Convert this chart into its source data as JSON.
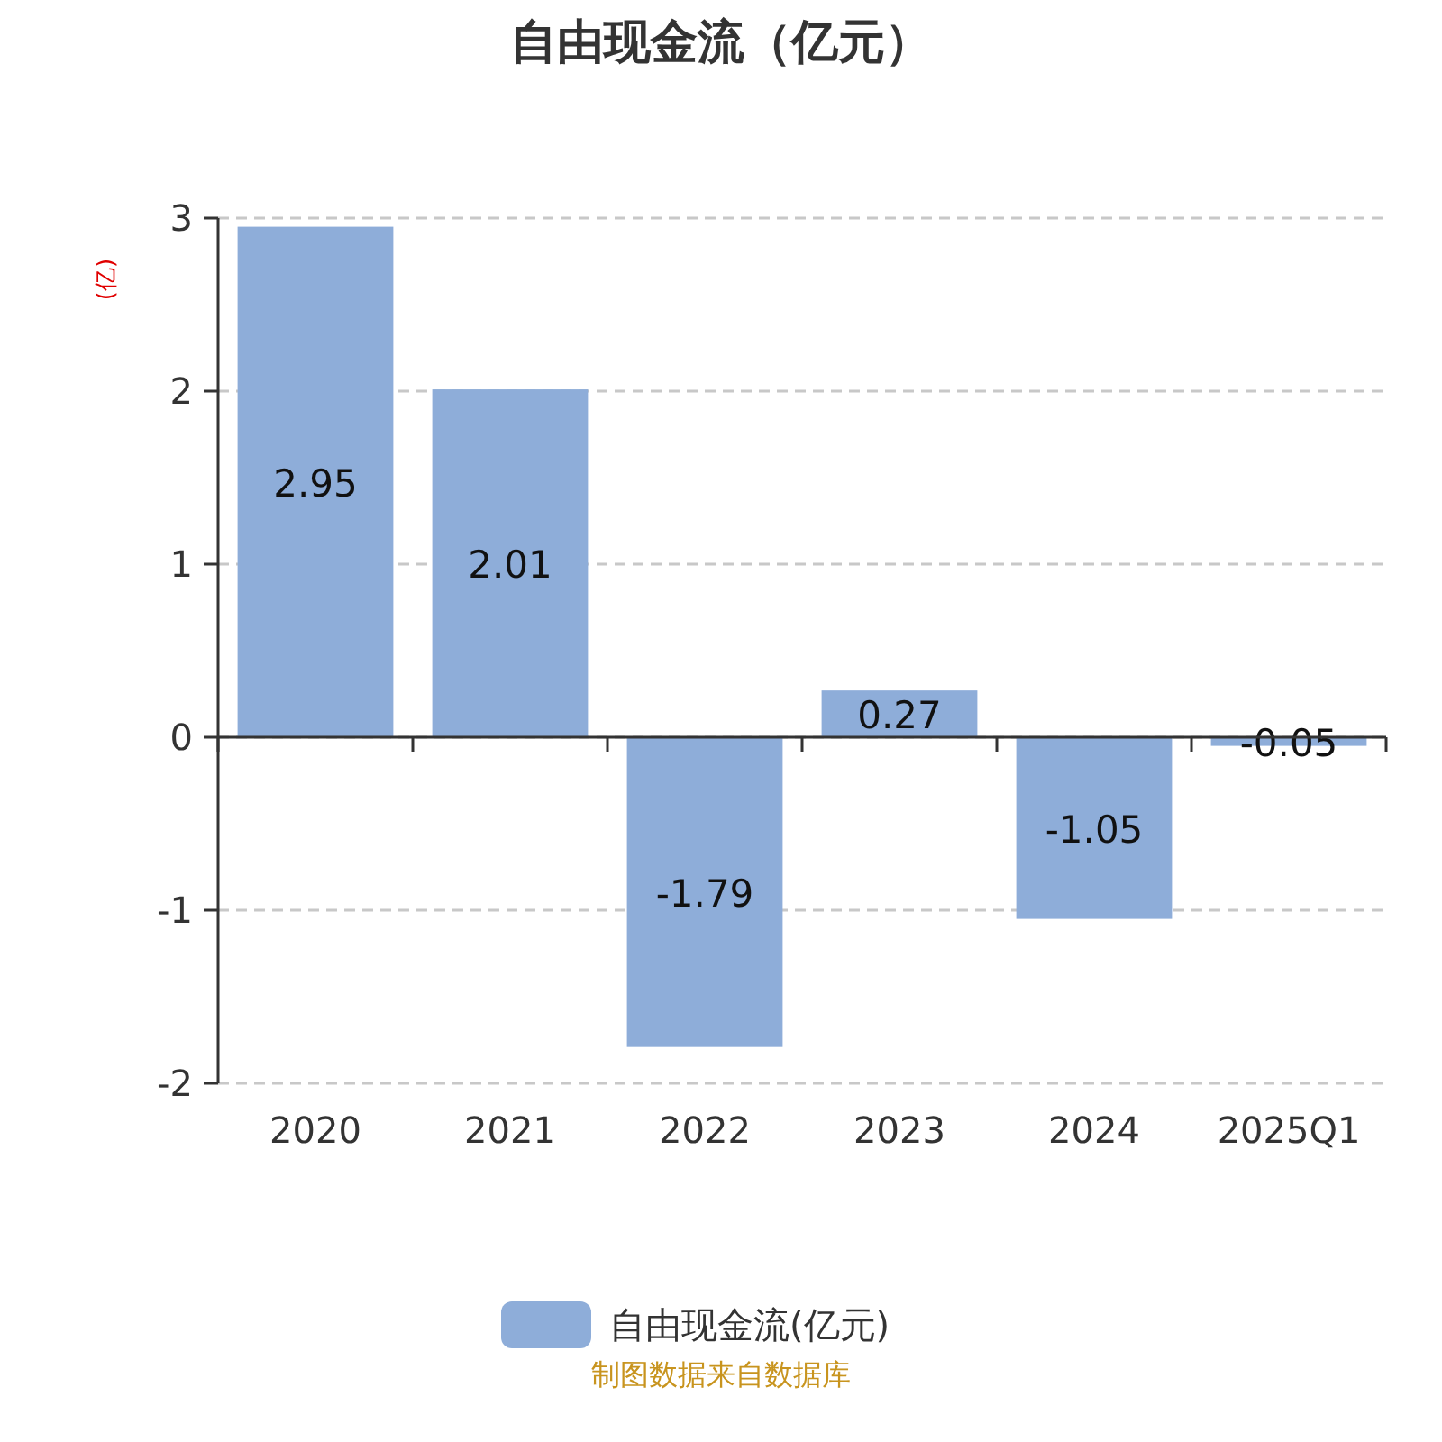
{
  "chart_data": {
    "type": "bar",
    "title": "自由现金流（亿元）",
    "ylabel": "(亿)",
    "categories": [
      "2020",
      "2021",
      "2022",
      "2023",
      "2024",
      "2025Q1"
    ],
    "series": [
      {
        "name": "自由现金流(亿元)",
        "color": "#8eadd9",
        "values": [
          2.95,
          2.01,
          -1.79,
          0.27,
          -1.05,
          -0.05
        ]
      }
    ],
    "ylim": [
      -2,
      3
    ],
    "yticks": [
      -2,
      -1,
      0,
      1,
      2,
      3
    ],
    "grid": "y",
    "legend": "bottom",
    "data_labels": true,
    "annotations": [
      "制图数据来自数据库"
    ]
  }
}
